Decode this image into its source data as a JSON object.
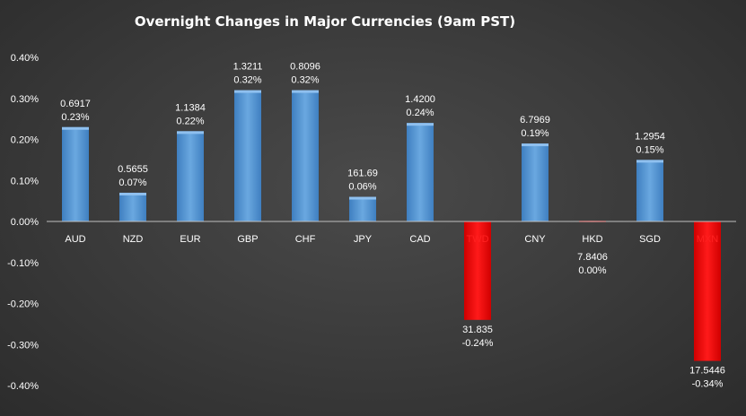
{
  "chart_data": {
    "type": "bar",
    "title": "Overnight Changes in Major Currencies (9am PST)",
    "xlabel": "",
    "ylabel": "",
    "ylim": [
      -0.4,
      0.4
    ],
    "yticks": [
      "0.40%",
      "0.30%",
      "0.20%",
      "0.10%",
      "0.00%",
      "-0.10%",
      "-0.20%",
      "-0.30%",
      "-0.40%"
    ],
    "ytick_values": [
      0.4,
      0.3,
      0.2,
      0.1,
      0.0,
      -0.1,
      -0.2,
      -0.3,
      -0.4
    ],
    "grid": false,
    "legend": "none",
    "categories": [
      "AUD",
      "NZD",
      "EUR",
      "GBP",
      "CHF",
      "JPY",
      "CAD",
      "TWD",
      "CNY",
      "HKD",
      "SGD",
      "MXN"
    ],
    "values": [
      0.23,
      0.07,
      0.22,
      0.32,
      0.32,
      0.06,
      0.24,
      -0.24,
      0.19,
      0.0,
      0.15,
      -0.34
    ],
    "rates": [
      "0.6917",
      "0.5655",
      "1.1384",
      "1.3211",
      "0.8096",
      "161.69",
      "1.4200",
      "31.835",
      "6.7969",
      "7.8406",
      "1.2954",
      "17.5446"
    ],
    "pct_labels": [
      "0.23%",
      "0.07%",
      "0.22%",
      "0.32%",
      "0.32%",
      "0.06%",
      "0.24%",
      "-0.24%",
      "0.19%",
      "0.00%",
      "0.15%",
      "-0.34%"
    ],
    "colors": {
      "positive": "#5b9bd5",
      "positive_dark": "#3f7fc0",
      "negative": "#ff0000",
      "negative_dark": "#c00000",
      "negative_label": "#ff2020",
      "axis": "#bfbfbf"
    }
  }
}
